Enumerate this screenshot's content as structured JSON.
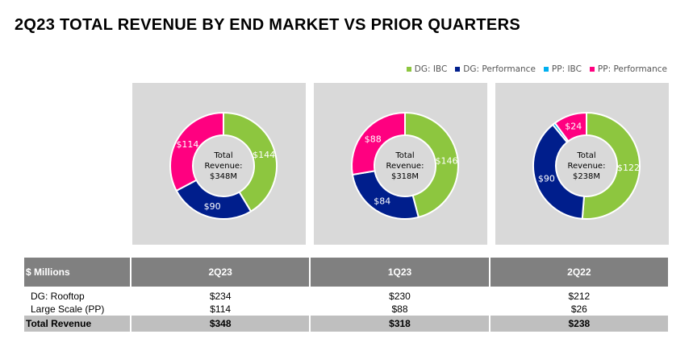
{
  "title": "2Q23 TOTAL REVENUE BY END MARKET VS PRIOR QUARTERS",
  "chart_data": {
    "type": "pie",
    "donut": true,
    "legend": {
      "placement": "top-right",
      "entries": [
        {
          "name": "DG: IBC",
          "color": "#8dc63f"
        },
        {
          "name": "DG: Performance",
          "color": "#001e8c"
        },
        {
          "name": "PP: IBC",
          "color": "#00b0f0"
        },
        {
          "name": "PP: Performance",
          "color": "#ff0080"
        }
      ]
    },
    "charts": [
      {
        "quarter": "2Q23",
        "center_label": [
          "Total",
          "Revenue:",
          "$348M"
        ],
        "values": [
          144,
          90,
          0,
          114
        ],
        "labels": [
          "$144",
          "$90",
          "",
          "$114"
        ]
      },
      {
        "quarter": "1Q23",
        "center_label": [
          "Total",
          "Revenue:",
          "$318M"
        ],
        "values": [
          146,
          84,
          0,
          88
        ],
        "labels": [
          "$146",
          "$84",
          "",
          "$88"
        ]
      },
      {
        "quarter": "2Q22",
        "center_label": [
          "Total",
          "Revenue:",
          "$238M"
        ],
        "values": [
          122,
          90,
          2,
          24
        ],
        "labels": [
          "$122",
          "$90",
          "",
          "$24"
        ]
      }
    ]
  },
  "table": {
    "headers": [
      "$ Millions",
      "2Q23",
      "1Q23",
      "2Q22"
    ],
    "rows": [
      [
        "DG: Rooftop",
        "$234",
        "$230",
        "$212"
      ],
      [
        "Large Scale (PP)",
        "$114",
        "$88",
        "$26"
      ]
    ],
    "total": [
      "Total Revenue",
      "$348",
      "$318",
      "$238"
    ]
  }
}
